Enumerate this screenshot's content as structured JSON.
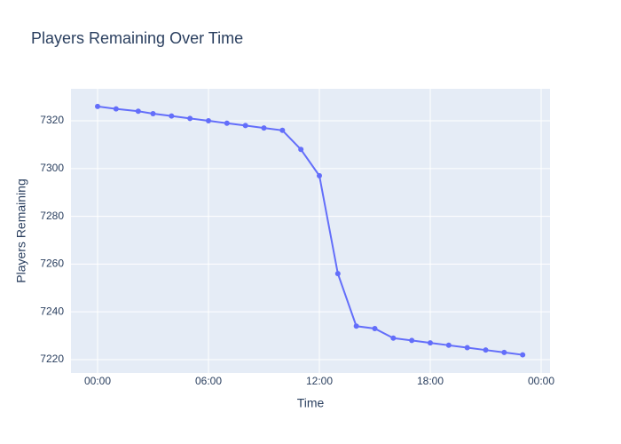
{
  "chart_data": {
    "type": "line",
    "title": "Players Remaining Over Time",
    "x_label": "Time",
    "y_label": "Players Remaining",
    "x": [
      0,
      1,
      2.2,
      3,
      4,
      5,
      6,
      7,
      8,
      9,
      10,
      11,
      12,
      13,
      14,
      15,
      16,
      17,
      18,
      19,
      20,
      21,
      22,
      23
    ],
    "series": [
      {
        "name": "Players Remaining",
        "color": "#636efa",
        "values": [
          7326,
          7325,
          7324,
          7323,
          7322,
          7321,
          7320,
          7319,
          7318,
          7317,
          7316,
          7308,
          7297,
          7256,
          7234,
          7233,
          7229,
          7228,
          7227,
          7226,
          7225,
          7224,
          7223,
          7222
        ]
      }
    ],
    "xlim": [
      -1.44,
      24.48
    ],
    "xticks": [
      {
        "value": 0,
        "label": "00:00"
      },
      {
        "value": 6,
        "label": "06:00"
      },
      {
        "value": 12,
        "label": "12:00"
      },
      {
        "value": 18,
        "label": "18:00"
      },
      {
        "value": 24,
        "label": "00:00"
      }
    ],
    "ylim": [
      7214.4,
      7333.4
    ],
    "yticks": [
      7220,
      7240,
      7260,
      7280,
      7300,
      7320
    ],
    "grid": true
  }
}
